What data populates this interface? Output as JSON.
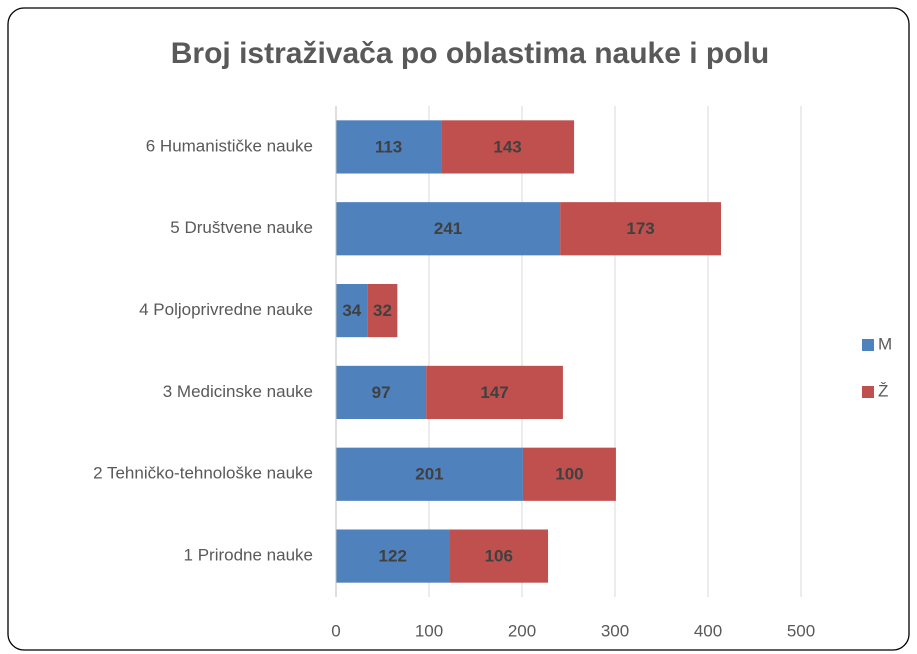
{
  "chart_data": {
    "type": "bar",
    "orientation": "horizontal",
    "stacked": true,
    "title": "Broj istraživača po oblastima nauke i polu",
    "categories": [
      "1 Prirodne nauke",
      "2 Tehničko-tehnološke nauke",
      "3 Medicinske nauke",
      "4 Poljoprivredne nauke",
      "5 Društvene nauke",
      "6 Humanističke nauke"
    ],
    "series": [
      {
        "name": "M",
        "color": "#4f81bd",
        "values": [
          122,
          201,
          97,
          34,
          241,
          113
        ]
      },
      {
        "name": "Ž",
        "color": "#c0504d",
        "values": [
          106,
          100,
          147,
          32,
          173,
          143
        ]
      }
    ],
    "xlim": [
      0,
      500
    ],
    "xticks": [
      0,
      100,
      200,
      300,
      400,
      500
    ],
    "grid": true,
    "legend": "right",
    "data_labels": true
  }
}
